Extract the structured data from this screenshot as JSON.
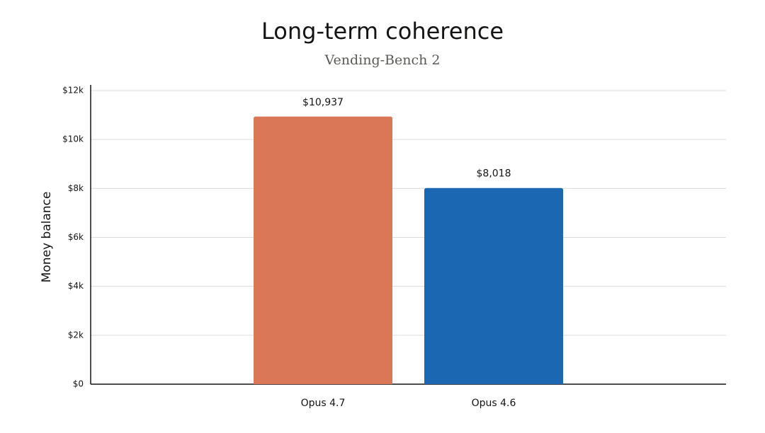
{
  "chart_data": {
    "type": "bar",
    "title": "Long-term coherence",
    "subtitle": "Vending-Bench 2",
    "y_label": "Money balance",
    "categories": [
      "Opus 4.7",
      "Opus 4.6"
    ],
    "values": [
      10937,
      8018
    ],
    "value_labels": [
      "$10,937",
      "$8,018"
    ],
    "colors": [
      "#d97757",
      "#1b67b2"
    ],
    "ylim": [
      0,
      12000
    ],
    "yticks": [
      {
        "value": 0,
        "label": "$0"
      },
      {
        "value": 2000,
        "label": "$2k"
      },
      {
        "value": 4000,
        "label": "$4k"
      },
      {
        "value": 6000,
        "label": "$6k"
      },
      {
        "value": 8000,
        "label": "$8k"
      },
      {
        "value": 10000,
        "label": "$10k"
      },
      {
        "value": 12000,
        "label": "$12k"
      }
    ],
    "grid": true
  }
}
